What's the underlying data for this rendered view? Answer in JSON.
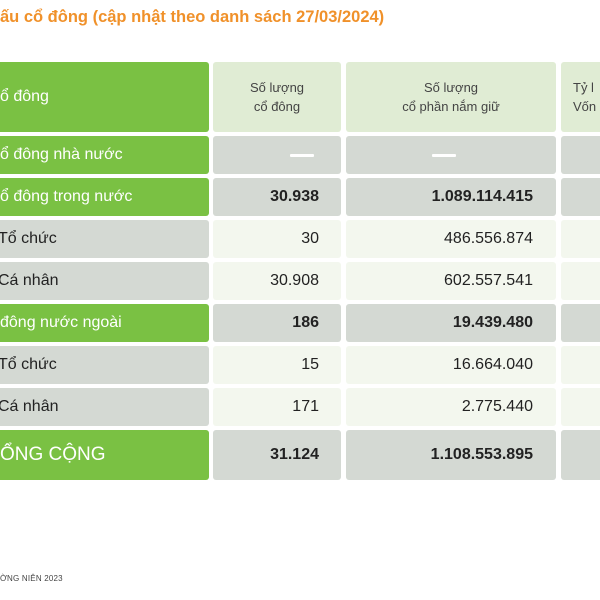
{
  "page_title": "ấu cổ đông (cập nhật theo danh sách 27/03/2024)",
  "header": {
    "col0": "ổ đông",
    "col1_line1": "Số lượng",
    "col1_line2": "cổ đông",
    "col2_line1": "Số lượng",
    "col2_line2": "cổ phần nắm giữ",
    "col3_line1": "Tỷ l",
    "col3_line2": "Vốn"
  },
  "rows": [
    {
      "label": "ổ đông nhà nước",
      "shareholders": "",
      "shares": "",
      "style": "green-label-dash"
    },
    {
      "label": "ổ đông trong nước",
      "shareholders": "30.938",
      "shares": "1.089.114.415",
      "style": "green-label-bold"
    },
    {
      "label": "Tổ chức",
      "shareholders": "30",
      "shares": "486.556.874",
      "style": "sub"
    },
    {
      "label": "Cá nhân",
      "shareholders": "30.908",
      "shares": "602.557.541",
      "style": "sub"
    },
    {
      "label": " đông nước ngoài",
      "shareholders": "186",
      "shares": "19.439.480",
      "style": "green-label-bold"
    },
    {
      "label": "Tổ chức",
      "shareholders": "15",
      "shares": "16.664.040",
      "style": "sub"
    },
    {
      "label": "Cá nhân",
      "shareholders": "171",
      "shares": "2.775.440",
      "style": "sub"
    },
    {
      "label": "ỔNG CỘNG",
      "shareholders": "31.124",
      "shares": "1.108.553.895",
      "style": "total"
    }
  ],
  "footer": "ỜNG NIÊN 2023",
  "colors": {
    "accent_green": "#7ac143",
    "title_orange": "#f0912a",
    "grey_cell": "#d4d9d3",
    "light_cell": "#f3f7ee"
  }
}
